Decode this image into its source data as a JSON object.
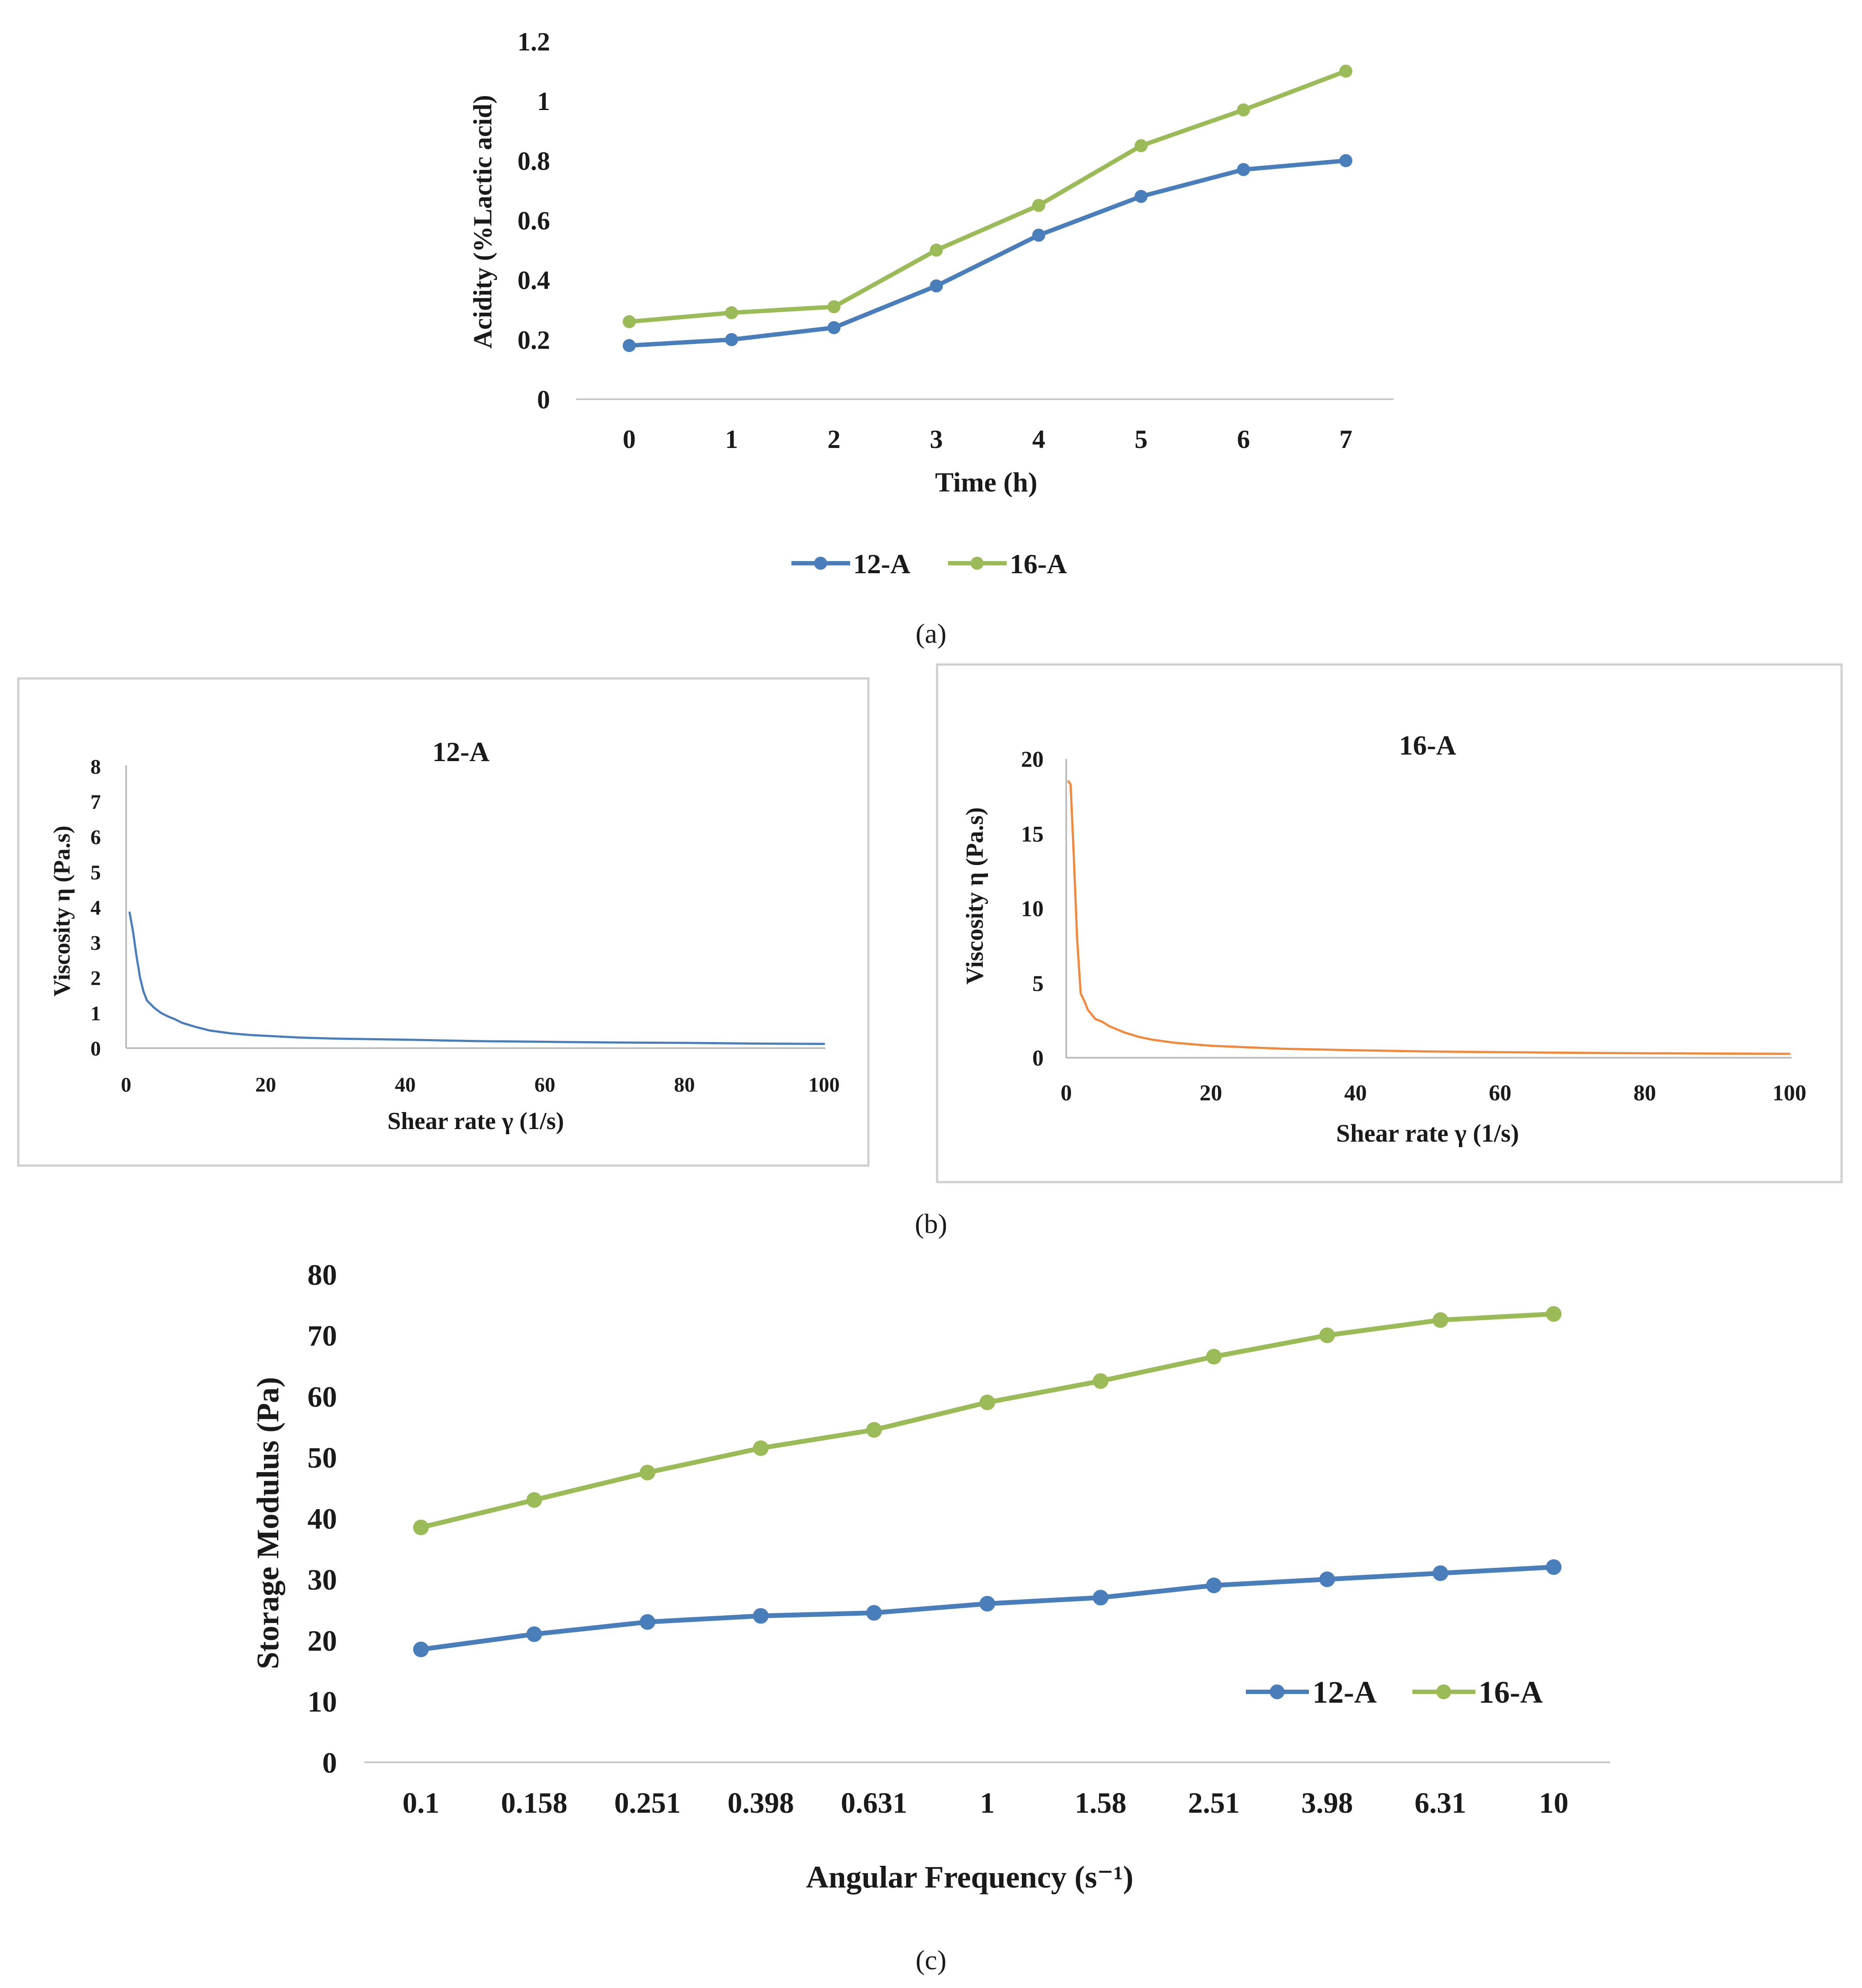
{
  "figure": {
    "panel_labels": [
      "(a)",
      "(b)",
      "(c)"
    ]
  },
  "chart_data": [
    {
      "panel": "(a)",
      "type": "line",
      "title": "",
      "xlabel": "Time (h)",
      "ylabel": "Acidity (%Lactic acid)",
      "categories": [
        "0",
        "1",
        "2",
        "3",
        "4",
        "5",
        "6",
        "7"
      ],
      "ylim": [
        0,
        1.2
      ],
      "yticks": [
        "0",
        "0.2",
        "0.4",
        "0.6",
        "0.8",
        "1",
        "1.2"
      ],
      "grid": false,
      "legend": "bottom",
      "series": [
        {
          "name": "12-A",
          "color": "#4a7ebb",
          "values": [
            0.18,
            0.2,
            0.24,
            0.38,
            0.55,
            0.68,
            0.77,
            0.8
          ]
        },
        {
          "name": "16-A",
          "color": "#9bbb59",
          "values": [
            0.26,
            0.29,
            0.31,
            0.5,
            0.65,
            0.85,
            0.97,
            1.1
          ]
        }
      ]
    },
    {
      "panel": "(b)",
      "type": "line",
      "title": "12-A",
      "xlabel": "Shear rate γ (1/s)",
      "ylabel": "Viscosity η (Pa.s)",
      "xlim": [
        0,
        100
      ],
      "xticks": [
        "0",
        "20",
        "40",
        "60",
        "80",
        "100"
      ],
      "ylim": [
        0,
        8
      ],
      "yticks": [
        "0",
        "1",
        "2",
        "3",
        "4",
        "5",
        "6",
        "7",
        "8"
      ],
      "grid": false,
      "series": [
        {
          "name": "",
          "color": "#4a7ebb",
          "x": [
            0.5,
            1,
            1.5,
            2,
            2.5,
            3,
            4,
            5,
            6,
            7,
            8,
            10,
            12,
            15,
            18,
            20,
            25,
            30,
            40,
            50,
            60,
            70,
            80,
            90,
            100
          ],
          "y": [
            3.85,
            3.3,
            2.6,
            2.0,
            1.6,
            1.35,
            1.15,
            1.0,
            0.9,
            0.82,
            0.72,
            0.6,
            0.5,
            0.42,
            0.37,
            0.35,
            0.3,
            0.27,
            0.24,
            0.2,
            0.18,
            0.16,
            0.15,
            0.13,
            0.12
          ]
        }
      ]
    },
    {
      "panel": "(b)",
      "type": "line",
      "title": "16-A",
      "xlabel": "Shear rate γ (1/s)",
      "ylabel": "Viscosity η (Pa.s)",
      "xlim": [
        0,
        100
      ],
      "xticks": [
        "0",
        "20",
        "40",
        "60",
        "80",
        "100"
      ],
      "ylim": [
        0,
        20
      ],
      "yticks": [
        "0",
        "5",
        "10",
        "15",
        "20"
      ],
      "grid": false,
      "series": [
        {
          "name": "",
          "color": "#f0893b",
          "x": [
            0.3,
            0.6,
            1,
            1.5,
            2,
            2.5,
            3,
            4,
            5,
            6,
            7,
            8,
            10,
            12,
            15,
            20,
            25,
            30,
            40,
            50,
            60,
            70,
            80,
            90,
            100
          ],
          "y": [
            18.5,
            18.3,
            14,
            8,
            4.3,
            3.8,
            3.2,
            2.6,
            2.4,
            2.1,
            1.9,
            1.7,
            1.4,
            1.2,
            1.0,
            0.8,
            0.7,
            0.6,
            0.5,
            0.42,
            0.37,
            0.33,
            0.3,
            0.28,
            0.26
          ]
        }
      ]
    },
    {
      "panel": "(c)",
      "type": "line",
      "title": "",
      "xlabel": "Angular Frequency (s⁻¹)",
      "ylabel": "Storage Modulus (Pa)",
      "categories": [
        "0.1",
        "0.158",
        "0.251",
        "0.398",
        "0.631",
        "1",
        "1.58",
        "2.51",
        "3.98",
        "6.31",
        "10"
      ],
      "ylim": [
        0,
        80
      ],
      "yticks": [
        "0",
        "10",
        "20",
        "30",
        "40",
        "50",
        "60",
        "70",
        "80"
      ],
      "grid": false,
      "legend": "bottom-right",
      "series": [
        {
          "name": "12-A",
          "color": "#4a7ebb",
          "values": [
            18.5,
            21,
            23,
            24,
            24.5,
            26,
            27,
            29,
            30,
            31,
            32
          ]
        },
        {
          "name": "16-A",
          "color": "#9bbb59",
          "values": [
            38.5,
            43,
            47.5,
            51.5,
            54.5,
            59,
            62.5,
            66.5,
            70,
            72.5,
            73.5
          ]
        }
      ]
    }
  ]
}
